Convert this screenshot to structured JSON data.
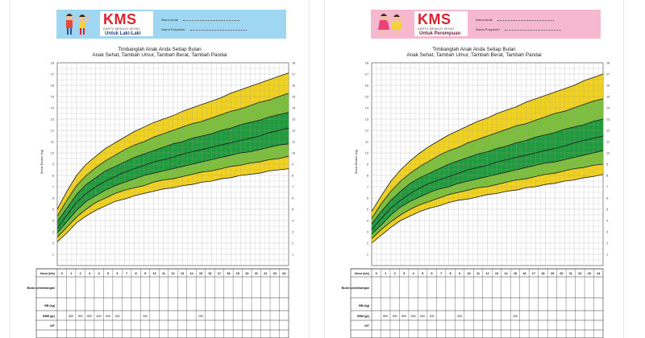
{
  "cards": [
    {
      "id": "boy",
      "logo": "KMS",
      "logo_subtitle": "KARTU MENUJU SEHAT",
      "gender_label": "Untuk Laki-Laki",
      "field_name_label": "Nama Anak",
      "field_posyandu_label": "Nama Posyandu",
      "banner_color": "#9fd6f2",
      "title_line1": "Timbanglah Anak Anda Setiap Bulan",
      "title_line2": "Anak Sehat, Tambah Umur, Tambah Berat, Tambah Pandai",
      "y_axis_label": "Berat Badan (kg)"
    },
    {
      "id": "girl",
      "logo": "KMS",
      "logo_subtitle": "KARTU MENUJU SEHAT",
      "gender_label": "Untuk Perempuan",
      "field_name_label": "Nama Anak",
      "field_posyandu_label": "Nama Posyandu",
      "banner_color": "#f6b8cf",
      "title_line1": "Timbanglah Anak Anda Setiap Bulan",
      "title_line2": "Anak Sehat, Tambah Umur, Tambah Berat, Tambah Pandai",
      "y_axis_label": "Berat Badan (kg)"
    }
  ],
  "table": {
    "row_umur": "Umur (bln)",
    "row_bulan": "Bulan penimbangan",
    "row_bb": "BB (kg)",
    "row_kbm": "KBM (gr)",
    "row_nt": "N/T",
    "kbm_values": [
      "800",
      "900",
      "800",
      "600",
      "500",
      "400",
      "300",
      "200"
    ],
    "months": [
      "0",
      "1",
      "2",
      "3",
      "4",
      "5",
      "6",
      "7",
      "8",
      "9",
      "10",
      "11",
      "12",
      "13",
      "14",
      "15",
      "16",
      "17",
      "18",
      "19",
      "20",
      "21",
      "22",
      "23",
      "24"
    ]
  },
  "chart_data": [
    {
      "type": "area",
      "title": "Timbanglah Anak Anda Setiap Bulan — Untuk Laki-Laki",
      "xlabel": "Umur (bln)",
      "ylabel": "Berat Badan (kg)",
      "x": [
        0,
        1,
        2,
        3,
        4,
        5,
        6,
        7,
        8,
        9,
        10,
        11,
        12,
        13,
        14,
        15,
        16,
        17,
        18,
        19,
        20,
        21,
        22,
        23,
        24
      ],
      "ylim": [
        0,
        18
      ],
      "y_ticks": [
        1,
        2,
        3,
        4,
        5,
        6,
        7,
        8,
        9,
        10,
        11,
        12,
        13,
        14,
        15,
        16,
        17,
        18
      ],
      "series": [
        {
          "name": "-3 SD",
          "values": [
            2.1,
            2.9,
            3.8,
            4.4,
            4.9,
            5.3,
            5.7,
            5.9,
            6.2,
            6.4,
            6.6,
            6.8,
            6.9,
            7.1,
            7.2,
            7.4,
            7.5,
            7.7,
            7.8,
            8.0,
            8.1,
            8.2,
            8.4,
            8.5,
            8.6
          ]
        },
        {
          "name": "-2 SD",
          "values": [
            2.5,
            3.4,
            4.3,
            5.0,
            5.6,
            6.0,
            6.4,
            6.7,
            6.9,
            7.1,
            7.4,
            7.6,
            7.7,
            7.9,
            8.1,
            8.3,
            8.4,
            8.6,
            8.8,
            8.9,
            9.1,
            9.2,
            9.4,
            9.5,
            9.7
          ]
        },
        {
          "name": "-1 SD",
          "values": [
            2.9,
            3.9,
            4.9,
            5.7,
            6.2,
            6.7,
            7.1,
            7.4,
            7.7,
            8.0,
            8.2,
            8.4,
            8.6,
            8.8,
            9.0,
            9.2,
            9.4,
            9.6,
            9.8,
            10.0,
            10.1,
            10.3,
            10.5,
            10.7,
            10.8
          ]
        },
        {
          "name": "Median",
          "values": [
            3.3,
            4.5,
            5.6,
            6.4,
            7.0,
            7.5,
            7.9,
            8.3,
            8.6,
            8.9,
            9.2,
            9.4,
            9.6,
            9.9,
            10.1,
            10.3,
            10.5,
            10.7,
            10.9,
            11.1,
            11.3,
            11.5,
            11.8,
            12.0,
            12.2
          ]
        },
        {
          "name": "+1 SD",
          "values": [
            3.9,
            5.1,
            6.3,
            7.2,
            7.8,
            8.4,
            8.8,
            9.2,
            9.6,
            9.9,
            10.2,
            10.5,
            10.8,
            11.0,
            11.3,
            11.5,
            11.7,
            12.0,
            12.2,
            12.5,
            12.7,
            12.9,
            13.2,
            13.4,
            13.6
          ]
        },
        {
          "name": "+2 SD",
          "values": [
            4.4,
            5.8,
            7.1,
            8.0,
            8.7,
            9.3,
            9.8,
            10.3,
            10.7,
            11.0,
            11.4,
            11.7,
            12.0,
            12.3,
            12.6,
            12.8,
            13.1,
            13.4,
            13.7,
            13.9,
            14.2,
            14.5,
            14.7,
            15.0,
            15.3
          ]
        },
        {
          "name": "+3 SD",
          "values": [
            5.0,
            6.6,
            8.0,
            9.0,
            9.7,
            10.4,
            10.9,
            11.4,
            11.9,
            12.3,
            12.7,
            13.0,
            13.3,
            13.7,
            14.0,
            14.3,
            14.6,
            14.9,
            15.3,
            15.6,
            15.9,
            16.2,
            16.5,
            16.8,
            17.1
          ]
        }
      ]
    },
    {
      "type": "area",
      "title": "Timbanglah Anak Anda Setiap Bulan — Untuk Perempuan",
      "xlabel": "Umur (bln)",
      "ylabel": "Berat Badan (kg)",
      "x": [
        0,
        1,
        2,
        3,
        4,
        5,
        6,
        7,
        8,
        9,
        10,
        11,
        12,
        13,
        14,
        15,
        16,
        17,
        18,
        19,
        20,
        21,
        22,
        23,
        24
      ],
      "ylim": [
        0,
        18
      ],
      "y_ticks": [
        1,
        2,
        3,
        4,
        5,
        6,
        7,
        8,
        9,
        10,
        11,
        12,
        13,
        14,
        15,
        16,
        17,
        18
      ],
      "series": [
        {
          "name": "-3 SD",
          "values": [
            2.0,
            2.7,
            3.4,
            4.0,
            4.4,
            4.8,
            5.1,
            5.3,
            5.6,
            5.8,
            5.9,
            6.1,
            6.3,
            6.4,
            6.6,
            6.7,
            6.9,
            7.0,
            7.2,
            7.3,
            7.5,
            7.6,
            7.8,
            7.9,
            8.1
          ]
        },
        {
          "name": "-2 SD",
          "values": [
            2.4,
            3.2,
            3.9,
            4.5,
            5.0,
            5.4,
            5.7,
            6.0,
            6.3,
            6.5,
            6.7,
            6.9,
            7.0,
            7.2,
            7.4,
            7.6,
            7.7,
            7.9,
            8.1,
            8.2,
            8.4,
            8.6,
            8.7,
            8.9,
            9.0
          ]
        },
        {
          "name": "-1 SD",
          "values": [
            2.8,
            3.6,
            4.5,
            5.2,
            5.7,
            6.1,
            6.5,
            6.8,
            7.0,
            7.3,
            7.5,
            7.7,
            7.9,
            8.1,
            8.3,
            8.5,
            8.7,
            8.9,
            9.1,
            9.2,
            9.4,
            9.6,
            9.8,
            10.0,
            10.2
          ]
        },
        {
          "name": "Median",
          "values": [
            3.2,
            4.2,
            5.1,
            5.8,
            6.4,
            6.9,
            7.3,
            7.6,
            7.9,
            8.2,
            8.5,
            8.7,
            8.9,
            9.2,
            9.4,
            9.6,
            9.8,
            10.0,
            10.2,
            10.4,
            10.6,
            10.9,
            11.1,
            11.3,
            11.5
          ]
        },
        {
          "name": "+1 SD",
          "values": [
            3.7,
            4.8,
            5.8,
            6.6,
            7.3,
            7.8,
            8.2,
            8.6,
            9.0,
            9.3,
            9.6,
            9.9,
            10.1,
            10.4,
            10.6,
            10.9,
            11.1,
            11.4,
            11.6,
            11.8,
            12.1,
            12.3,
            12.5,
            12.8,
            13.0
          ]
        },
        {
          "name": "+2 SD",
          "values": [
            4.2,
            5.5,
            6.6,
            7.5,
            8.2,
            8.8,
            9.3,
            9.8,
            10.2,
            10.5,
            10.9,
            11.2,
            11.5,
            11.8,
            12.1,
            12.4,
            12.6,
            12.9,
            13.2,
            13.5,
            13.7,
            14.0,
            14.3,
            14.6,
            14.8
          ]
        },
        {
          "name": "+3 SD",
          "values": [
            4.8,
            6.2,
            7.5,
            8.5,
            9.3,
            10.0,
            10.6,
            11.1,
            11.6,
            12.0,
            12.4,
            12.8,
            13.1,
            13.5,
            13.8,
            14.1,
            14.5,
            14.8,
            15.1,
            15.4,
            15.7,
            16.0,
            16.4,
            16.7,
            17.0
          ]
        }
      ]
    }
  ],
  "colors": {
    "yellow": "#f1d21e",
    "light_green": "#7cbf3a",
    "dark_green": "#1f9a3c",
    "grid": "#bdbdbd",
    "curve": "#1b1b1b",
    "logo_red": "#d9232e"
  }
}
